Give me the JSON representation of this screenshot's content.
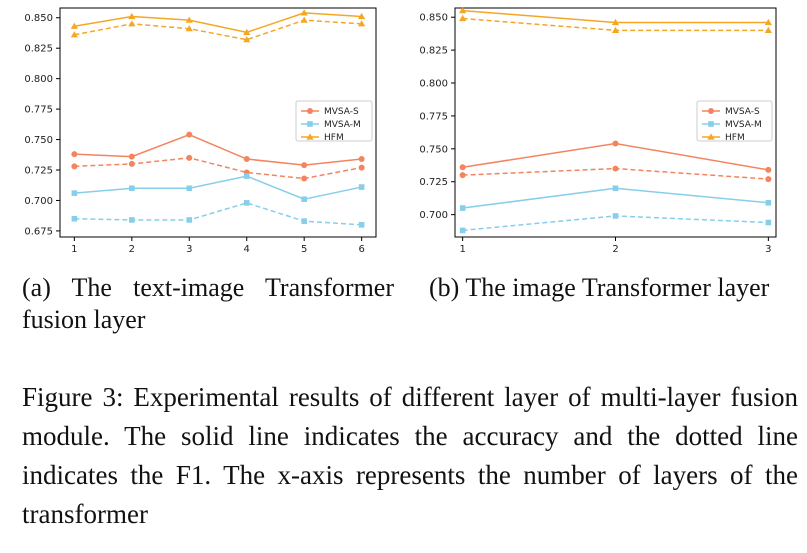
{
  "chart_data": [
    {
      "type": "line",
      "x": [
        1,
        2,
        3,
        4,
        5,
        6
      ],
      "ylim": [
        0.67,
        0.858
      ],
      "xlim": [
        0.75,
        6.25
      ],
      "yticks": [
        0.675,
        0.7,
        0.725,
        0.75,
        0.775,
        0.8,
        0.825,
        0.85
      ],
      "ytick_labels": [
        "0.675",
        "0.700",
        "0.725",
        "0.750",
        "0.775",
        "0.800",
        "0.825",
        "0.850"
      ],
      "xtick_labels": [
        "1",
        "2",
        "3",
        "4",
        "5",
        "6"
      ],
      "grid": false,
      "legend_placement": "center-right",
      "legend": [
        {
          "name": "MVSA-S",
          "color": "#f4845f",
          "marker": "circle"
        },
        {
          "name": "MVSA-M",
          "color": "#87ceeb",
          "marker": "square"
        },
        {
          "name": "HFM",
          "color": "#f5a623",
          "marker": "triangle"
        }
      ],
      "series": [
        {
          "legend": 0,
          "line": "solid",
          "values": [
            0.738,
            0.736,
            0.754,
            0.734,
            0.729,
            0.734
          ]
        },
        {
          "legend": 0,
          "line": "dashed",
          "values": [
            0.728,
            0.73,
            0.735,
            0.723,
            0.718,
            0.727
          ]
        },
        {
          "legend": 1,
          "line": "solid",
          "values": [
            0.706,
            0.71,
            0.71,
            0.72,
            0.701,
            0.711
          ]
        },
        {
          "legend": 1,
          "line": "dashed",
          "values": [
            0.685,
            0.684,
            0.684,
            0.698,
            0.683,
            0.68
          ]
        },
        {
          "legend": 2,
          "line": "solid",
          "values": [
            0.843,
            0.851,
            0.848,
            0.838,
            0.854,
            0.851
          ]
        },
        {
          "legend": 2,
          "line": "dashed",
          "values": [
            0.836,
            0.845,
            0.841,
            0.832,
            0.848,
            0.845
          ]
        }
      ]
    },
    {
      "type": "line",
      "x": [
        1,
        2,
        3
      ],
      "ylim": [
        0.683,
        0.857
      ],
      "xlim": [
        0.95,
        3.05
      ],
      "yticks": [
        0.7,
        0.725,
        0.75,
        0.775,
        0.8,
        0.825,
        0.85
      ],
      "ytick_labels": [
        "0.700",
        "0.725",
        "0.750",
        "0.775",
        "0.800",
        "0.825",
        "0.850"
      ],
      "xtick_labels": [
        "1",
        "2",
        "3"
      ],
      "grid": false,
      "legend_placement": "center-right",
      "legend": [
        {
          "name": "MVSA-S",
          "color": "#f4845f",
          "marker": "circle"
        },
        {
          "name": "MVSA-M",
          "color": "#87ceeb",
          "marker": "square"
        },
        {
          "name": "HFM",
          "color": "#f5a623",
          "marker": "triangle"
        }
      ],
      "series": [
        {
          "legend": 0,
          "line": "solid",
          "values": [
            0.736,
            0.754,
            0.734
          ]
        },
        {
          "legend": 0,
          "line": "dashed",
          "values": [
            0.73,
            0.735,
            0.727
          ]
        },
        {
          "legend": 1,
          "line": "solid",
          "values": [
            0.705,
            0.72,
            0.709
          ]
        },
        {
          "legend": 1,
          "line": "dashed",
          "values": [
            0.688,
            0.699,
            0.694
          ]
        },
        {
          "legend": 2,
          "line": "solid",
          "values": [
            0.855,
            0.846,
            0.846
          ]
        },
        {
          "legend": 2,
          "line": "dashed",
          "values": [
            0.849,
            0.84,
            0.84
          ]
        }
      ]
    }
  ],
  "captions": {
    "a": "(a) The text-image Transformer fusion layer",
    "b": "(b) The image Transformer layer",
    "figure": "Figure 3: Experimental results of different layer of multi-layer fusion module. The solid line indicates the accuracy and the dotted line indicates the F1. The x-axis represents the number of layers of the transformer"
  }
}
